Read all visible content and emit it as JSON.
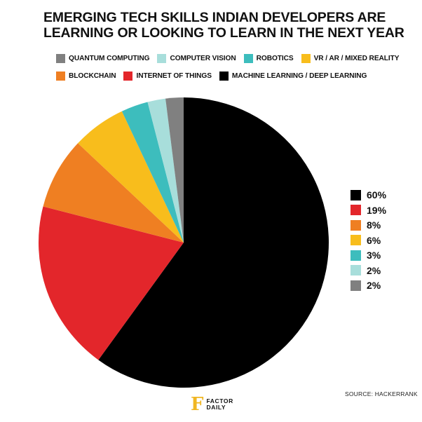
{
  "title": {
    "line1": "EMERGING TECH SKILLS INDIAN DEVELOPERS ARE",
    "line2": "LEARNING OR LOOKING TO LEARN IN THE NEXT YEAR"
  },
  "source": "SOURCE: HACKERRANK",
  "logo": {
    "line1": "FACTOR",
    "line2": "DAILY",
    "mark": "F"
  },
  "chart_data": {
    "type": "pie",
    "slices": [
      {
        "label": "MACHINE LEARNING / DEEP LEARNING",
        "value": 60,
        "display": "60%",
        "color": "#000000"
      },
      {
        "label": "INTERNET OF THINGS",
        "value": 19,
        "display": "19%",
        "color": "#e3262b"
      },
      {
        "label": "BLOCKCHAIN",
        "value": 8,
        "display": "8%",
        "color": "#ef7f22"
      },
      {
        "label": "VR / AR  / MIXED REALITY",
        "value": 6,
        "display": "6%",
        "color": "#f8bd1c"
      },
      {
        "label": "ROBOTICS",
        "value": 3,
        "display": "3%",
        "color": "#3dbdbd"
      },
      {
        "label": "COMPUTER VISION",
        "value": 2,
        "display": "2%",
        "color": "#a8dedb"
      },
      {
        "label": "QUANTUM COMPUTING",
        "value": 2,
        "display": "2%",
        "color": "#808080"
      }
    ],
    "legend_order": [
      [
        "QUANTUM COMPUTING",
        "COMPUTER VISION",
        "ROBOTICS",
        "VR / AR  / MIXED REALITY"
      ],
      [
        "BLOCKCHAIN",
        "INTERNET OF THINGS",
        "MACHINE LEARNING / DEEP LEARNING"
      ]
    ],
    "legend_placement": "top",
    "value_legend_placement": "right"
  }
}
